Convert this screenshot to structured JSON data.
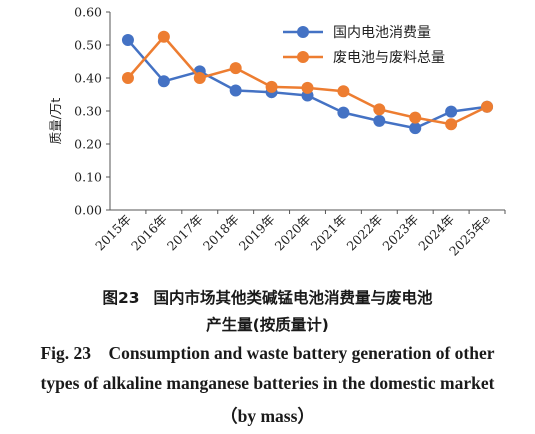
{
  "chart_data": {
    "type": "line",
    "categories": [
      "2015年",
      "2016年",
      "2017年",
      "2018年",
      "2019年",
      "2020年",
      "2021年",
      "2022年",
      "2023年",
      "2024年",
      "2025年e"
    ],
    "ylabel": "质量/万t",
    "ylim": [
      0,
      0.6
    ],
    "yticks": [
      "0.00",
      "0.10",
      "0.20",
      "0.30",
      "0.40",
      "0.50",
      "0.60"
    ],
    "grid": false,
    "legend_position": "top-right",
    "series": [
      {
        "name": "国内电池消费量",
        "color": "#4472C4",
        "values": [
          0.515,
          0.39,
          0.42,
          0.362,
          0.357,
          0.347,
          0.295,
          0.27,
          0.248,
          0.298,
          0.313
        ]
      },
      {
        "name": "废电池与废料总量",
        "color": "#ED7D31",
        "values": [
          0.4,
          0.525,
          0.4,
          0.43,
          0.373,
          0.37,
          0.36,
          0.305,
          0.28,
          0.26,
          0.313
        ]
      }
    ]
  },
  "caption": {
    "cn_fig_no": "图23",
    "cn_line1": "国内市场其他类碱锰电池消费量与废电池",
    "cn_line2": "产生量(按质量计)",
    "en_line1": "Fig. 23    Consumption and waste battery generation of other",
    "en_line2": "types of alkaline manganese batteries in the domestic market",
    "en_line3": "（by mass）"
  }
}
